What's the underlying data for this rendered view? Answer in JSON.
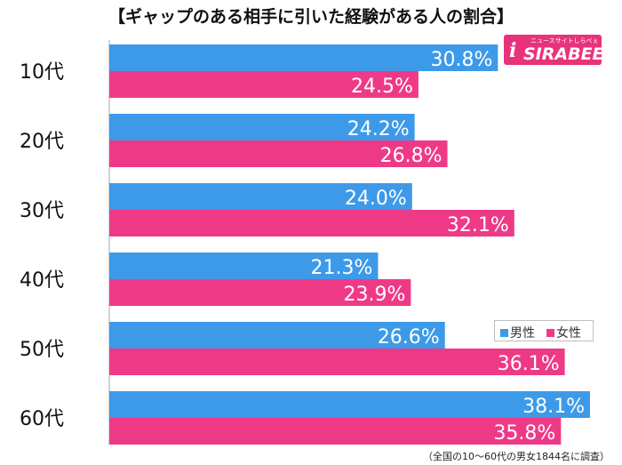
{
  "title": "【ギャップのある相手に引いた経験がある人の割合】",
  "logo": {
    "tagline": "ニュースサイトしらべぇ",
    "brand": "SIRABEE",
    "mark": "i"
  },
  "footnote": "（全国の10～60代の男女1844名に調査）",
  "colors": {
    "male": "#3d9ae8",
    "female": "#ee3a86",
    "background": "#ffffff"
  },
  "chart_data": {
    "type": "bar",
    "orientation": "horizontal",
    "title": "【ギャップのある相手に引いた経験がある人の割合】",
    "categories": [
      "10代",
      "20代",
      "30代",
      "40代",
      "50代",
      "60代"
    ],
    "series": [
      {
        "name": "男性",
        "color": "#3d9ae8",
        "values": [
          30.8,
          24.2,
          24.0,
          21.3,
          26.6,
          38.1
        ],
        "labels": [
          "30.8%",
          "24.2%",
          "24.0%",
          "21.3%",
          "26.6%",
          "38.1%"
        ]
      },
      {
        "name": "女性",
        "color": "#ee3a86",
        "values": [
          24.5,
          26.8,
          32.1,
          23.9,
          36.1,
          35.8
        ],
        "labels": [
          "24.5%",
          "26.8%",
          "32.1%",
          "23.9%",
          "36.1%",
          "35.8%"
        ]
      }
    ],
    "value_unit": "%",
    "xlim": [
      0,
      38.1
    ],
    "grid": false,
    "legend_position": "right"
  }
}
